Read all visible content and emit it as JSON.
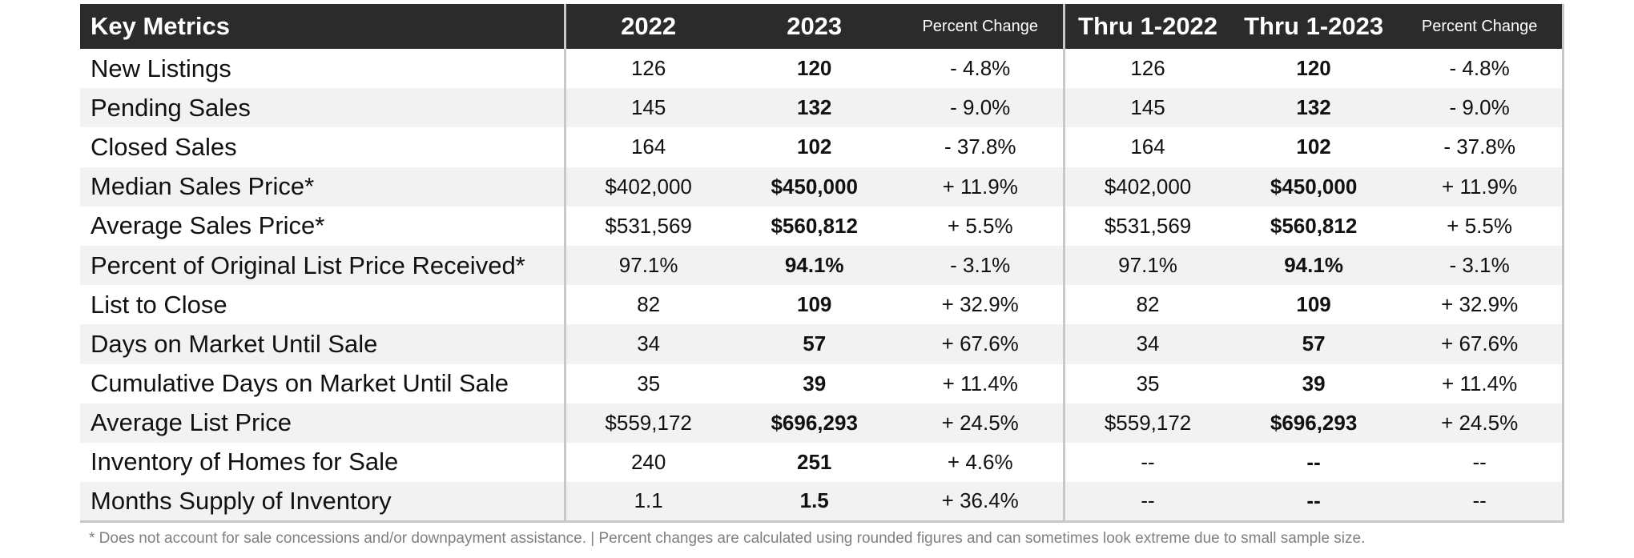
{
  "header": {
    "metric": "Key Metrics",
    "col_2022": "2022",
    "col_2023": "2023",
    "pct_change_a": "Percent Change",
    "col_thru_2022": "Thru 1-2022",
    "col_thru_2023": "Thru 1-2023",
    "pct_change_b": "Percent Change"
  },
  "rows": [
    {
      "metric": "New Listings",
      "v2022": "126",
      "v2023": "120",
      "pct": "- 4.8%",
      "t2022": "126",
      "t2023": "120",
      "tpct": "- 4.8%"
    },
    {
      "metric": "Pending Sales",
      "v2022": "145",
      "v2023": "132",
      "pct": "- 9.0%",
      "t2022": "145",
      "t2023": "132",
      "tpct": "- 9.0%"
    },
    {
      "metric": "Closed Sales",
      "v2022": "164",
      "v2023": "102",
      "pct": "- 37.8%",
      "t2022": "164",
      "t2023": "102",
      "tpct": "- 37.8%"
    },
    {
      "metric": "Median Sales Price*",
      "v2022": "$402,000",
      "v2023": "$450,000",
      "pct": "+ 11.9%",
      "t2022": "$402,000",
      "t2023": "$450,000",
      "tpct": "+ 11.9%"
    },
    {
      "metric": "Average Sales Price*",
      "v2022": "$531,569",
      "v2023": "$560,812",
      "pct": "+ 5.5%",
      "t2022": "$531,569",
      "t2023": "$560,812",
      "tpct": "+ 5.5%"
    },
    {
      "metric": "Percent of Original List Price Received*",
      "v2022": "97.1%",
      "v2023": "94.1%",
      "pct": "- 3.1%",
      "t2022": "97.1%",
      "t2023": "94.1%",
      "tpct": "- 3.1%"
    },
    {
      "metric": "List to Close",
      "v2022": "82",
      "v2023": "109",
      "pct": "+ 32.9%",
      "t2022": "82",
      "t2023": "109",
      "tpct": "+ 32.9%"
    },
    {
      "metric": "Days on Market Until Sale",
      "v2022": "34",
      "v2023": "57",
      "pct": "+ 67.6%",
      "t2022": "34",
      "t2023": "57",
      "tpct": "+ 67.6%"
    },
    {
      "metric": "Cumulative Days on Market Until Sale",
      "v2022": "35",
      "v2023": "39",
      "pct": "+ 11.4%",
      "t2022": "35",
      "t2023": "39",
      "tpct": "+ 11.4%"
    },
    {
      "metric": "Average List Price",
      "v2022": "$559,172",
      "v2023": "$696,293",
      "pct": "+ 24.5%",
      "t2022": "$559,172",
      "t2023": "$696,293",
      "tpct": "+ 24.5%"
    },
    {
      "metric": "Inventory of Homes for Sale",
      "v2022": "240",
      "v2023": "251",
      "pct": "+ 4.6%",
      "t2022": "--",
      "t2023": "--",
      "tpct": "--"
    },
    {
      "metric": "Months Supply of Inventory",
      "v2022": "1.1",
      "v2023": "1.5",
      "pct": "+ 36.4%",
      "t2022": "--",
      "t2023": "--",
      "tpct": "--"
    }
  ],
  "footnote": "* Does not account for sale concessions and/or downpayment assistance.  |  Percent changes are calculated using rounded figures and can sometimes look extreme due to small sample size."
}
